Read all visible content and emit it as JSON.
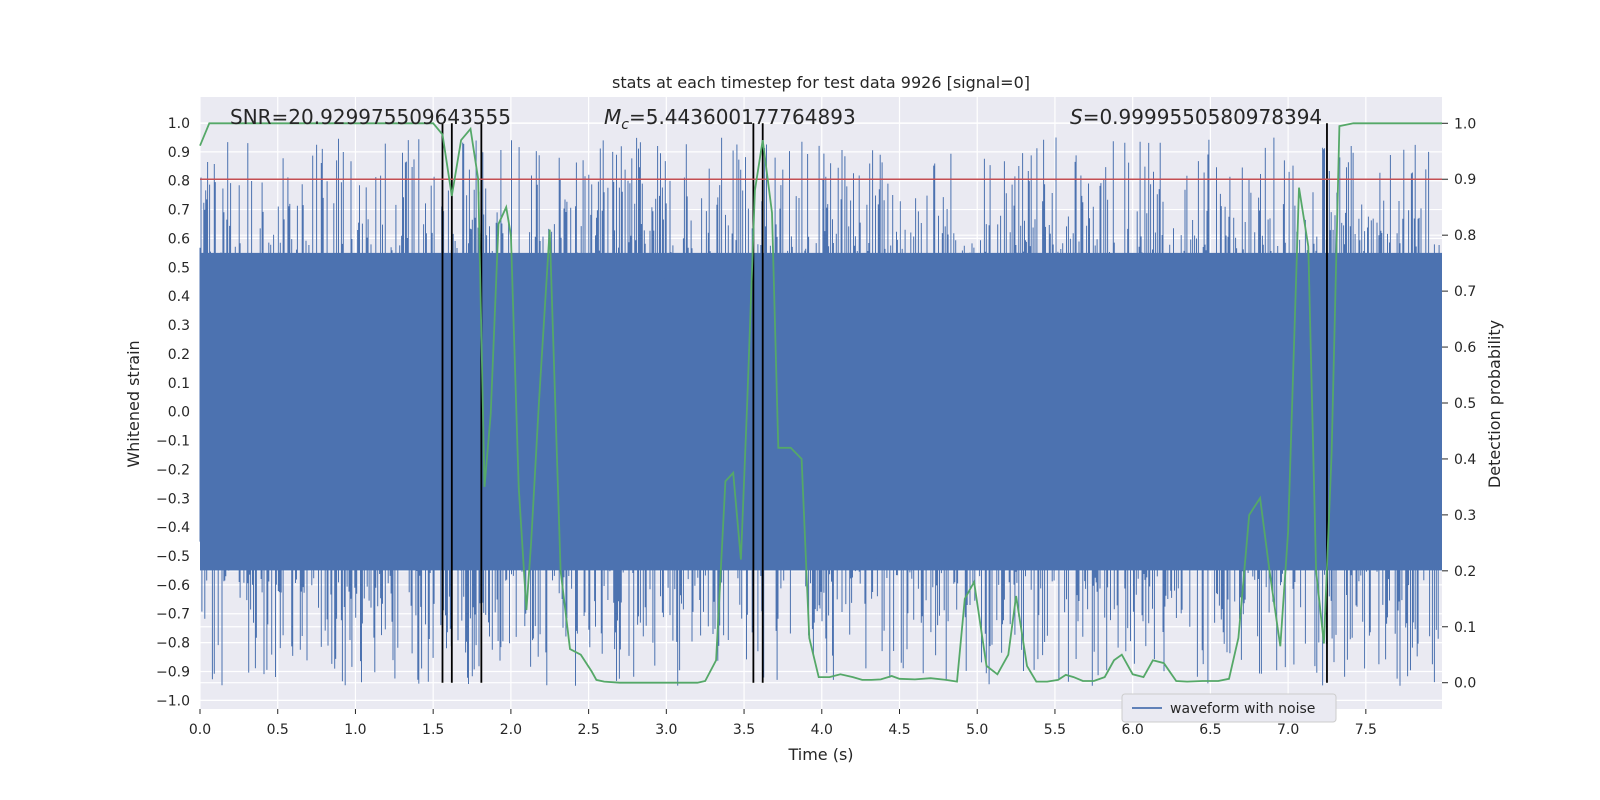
{
  "chart_data": {
    "type": "line",
    "title": "stats at each timestep for test data 9926 [signal=0]",
    "xlabel": "Time (s)",
    "ylabel": "Whitened strain",
    "ylabel_right": "Detection probability",
    "xlim": [
      0.0,
      7.99
    ],
    "ylim": [
      -1.03,
      1.09
    ],
    "ylim_right": [
      -0.047,
      1.047
    ],
    "x_ticks": [
      0.0,
      0.5,
      1.0,
      1.5,
      2.0,
      2.5,
      3.0,
      3.5,
      4.0,
      4.5,
      5.0,
      5.5,
      6.0,
      6.5,
      7.0,
      7.5
    ],
    "x_tick_labels": [
      "0.0",
      "0.5",
      "1.0",
      "1.5",
      "2.0",
      "2.5",
      "3.0",
      "3.5",
      "4.0",
      "4.5",
      "5.0",
      "5.5",
      "6.0",
      "6.5",
      "7.0",
      "7.5"
    ],
    "y_ticks": [
      1.0,
      0.9,
      0.8,
      0.7,
      0.6,
      0.5,
      0.4,
      0.3,
      0.2,
      0.1,
      0.0,
      -0.1,
      -0.2,
      -0.3,
      -0.4,
      -0.5,
      -0.6,
      -0.7,
      -0.8,
      -0.9,
      -1.0
    ],
    "y_tick_labels": [
      "1.0",
      "0.9",
      "0.8",
      "0.7",
      "0.6",
      "0.5",
      "0.4",
      "0.3",
      "0.2",
      "0.1",
      "0.0",
      "−0.1",
      "−0.2",
      "−0.3",
      "−0.4",
      "−0.5",
      "−0.6",
      "−0.7",
      "−0.8",
      "−0.9",
      "−1.0"
    ],
    "y2_ticks": [
      1.0,
      0.9,
      0.8,
      0.7,
      0.6,
      0.5,
      0.4,
      0.3,
      0.2,
      0.1,
      0.0
    ],
    "y2_tick_labels": [
      "1.0",
      "0.9",
      "0.8",
      "0.7",
      "0.6",
      "0.5",
      "0.4",
      "0.3",
      "0.2",
      "0.1",
      "0.0"
    ],
    "grid": true,
    "legend": {
      "placement": "lower-right",
      "entries": [
        "waveform with noise"
      ]
    },
    "annotations": {
      "snr": "SNR=20.929975509643555",
      "mc_symbol": "M",
      "mc_sub": "c",
      "mc_value": "=5.443600177764893",
      "s_symbol": "S",
      "s_value": "=0.9999550580978394"
    },
    "threshold_line": {
      "y_right": 0.9,
      "color": "#c44e52"
    },
    "vertical_lines_x": [
      1.56,
      1.62,
      1.81,
      3.56,
      3.62,
      7.25
    ],
    "series": [
      {
        "name": "waveform with noise",
        "axis": "left",
        "color": "#4c72b0",
        "style": "dense-noise",
        "core_band": [
          -0.55,
          0.55
        ],
        "spike_max": [
          0.95,
          -0.95
        ]
      },
      {
        "axis": "right",
        "color": "#55a868",
        "x": [
          0.0,
          0.06,
          0.2,
          0.4,
          0.6,
          0.8,
          1.0,
          1.2,
          1.4,
          1.5,
          1.56,
          1.62,
          1.68,
          1.74,
          1.79,
          1.83,
          1.87,
          1.92,
          1.97,
          2.0,
          2.05,
          2.1,
          2.13,
          2.18,
          2.25,
          2.32,
          2.38,
          2.45,
          2.52,
          2.55,
          2.6,
          2.7,
          2.8,
          3.0,
          3.2,
          3.25,
          3.32,
          3.38,
          3.43,
          3.48,
          3.52,
          3.57,
          3.62,
          3.68,
          3.72,
          3.8,
          3.87,
          3.92,
          3.98,
          4.05,
          4.12,
          4.2,
          4.26,
          4.32,
          4.38,
          4.45,
          4.5,
          4.6,
          4.7,
          4.8,
          4.87,
          4.92,
          4.98,
          5.06,
          5.13,
          5.2,
          5.25,
          5.32,
          5.38,
          5.45,
          5.52,
          5.57,
          5.62,
          5.68,
          5.75,
          5.82,
          5.88,
          5.93,
          6.0,
          6.07,
          6.13,
          6.2,
          6.28,
          6.35,
          6.45,
          6.55,
          6.62,
          6.68,
          6.75,
          6.82,
          6.88,
          6.95,
          7.0,
          7.07,
          7.13,
          7.18,
          7.23,
          7.28,
          7.33,
          7.42,
          7.55,
          7.7,
          7.85,
          7.99
        ],
        "y": [
          0.96,
          1.0,
          1.0,
          1.0,
          1.0,
          1.0,
          1.0,
          1.0,
          1.0,
          1.0,
          0.98,
          0.87,
          0.97,
          0.99,
          0.9,
          0.35,
          0.48,
          0.82,
          0.85,
          0.8,
          0.35,
          0.13,
          0.25,
          0.5,
          0.81,
          0.2,
          0.06,
          0.05,
          0.02,
          0.005,
          0.002,
          0.0,
          0.0,
          0.0,
          0.0,
          0.003,
          0.04,
          0.36,
          0.375,
          0.22,
          0.5,
          0.88,
          0.97,
          0.84,
          0.42,
          0.42,
          0.4,
          0.08,
          0.01,
          0.01,
          0.015,
          0.01,
          0.005,
          0.005,
          0.006,
          0.012,
          0.007,
          0.006,
          0.008,
          0.005,
          0.002,
          0.15,
          0.18,
          0.03,
          0.015,
          0.05,
          0.155,
          0.03,
          0.002,
          0.002,
          0.005,
          0.014,
          0.01,
          0.003,
          0.003,
          0.01,
          0.04,
          0.05,
          0.015,
          0.01,
          0.04,
          0.035,
          0.003,
          0.002,
          0.003,
          0.003,
          0.007,
          0.08,
          0.3,
          0.33,
          0.2,
          0.065,
          0.27,
          0.885,
          0.78,
          0.2,
          0.07,
          0.41,
          0.995,
          1.0,
          1.0,
          1.0,
          1.0,
          1.0
        ]
      }
    ]
  }
}
